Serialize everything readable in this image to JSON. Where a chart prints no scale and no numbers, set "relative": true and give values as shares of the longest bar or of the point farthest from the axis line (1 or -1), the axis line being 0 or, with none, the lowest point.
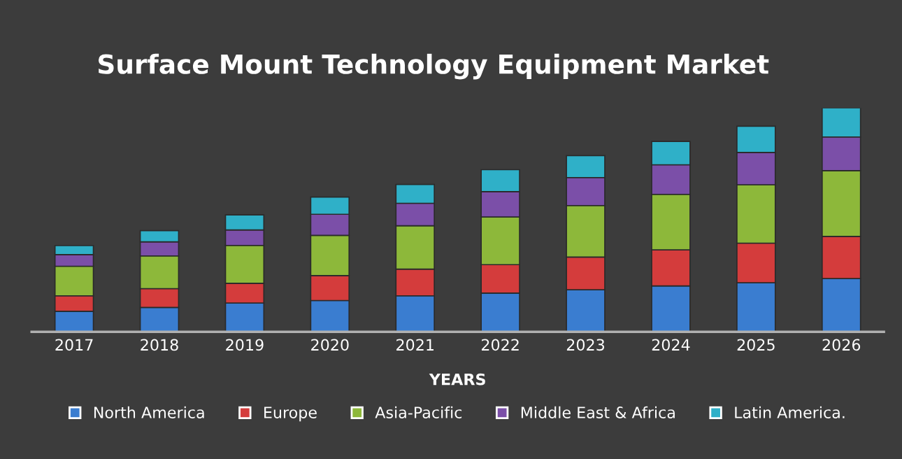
{
  "chart_data": {
    "type": "bar",
    "title": "Surface Mount Technology Equipment Market",
    "xlabel": "YEARS",
    "relative": true,
    "stacked": true,
    "legend": "bottom",
    "grid": false,
    "categories": [
      "2017",
      "2018",
      "2019",
      "2020",
      "2021",
      "2022",
      "2023",
      "2024",
      "2025",
      "2026"
    ],
    "series": [
      {
        "name": "North America",
        "color": "#3a7dd0",
        "values": [
          0.092,
          0.109,
          0.129,
          0.14,
          0.161,
          0.173,
          0.188,
          0.205,
          0.219,
          0.238
        ]
      },
      {
        "name": "Europe",
        "color": "#d43c3c",
        "values": [
          0.069,
          0.084,
          0.088,
          0.111,
          0.119,
          0.127,
          0.146,
          0.161,
          0.177,
          0.188
        ]
      },
      {
        "name": "Asia-Pacific",
        "color": "#8db83a",
        "values": [
          0.132,
          0.146,
          0.169,
          0.18,
          0.194,
          0.213,
          0.23,
          0.248,
          0.261,
          0.294
        ]
      },
      {
        "name": "Middle East & Africa",
        "color": "#7b4fa8",
        "values": [
          0.052,
          0.063,
          0.069,
          0.094,
          0.1,
          0.113,
          0.125,
          0.132,
          0.144,
          0.15
        ]
      },
      {
        "name": "Latin America.",
        "color": "#2fb0c8",
        "values": [
          0.04,
          0.05,
          0.067,
          0.077,
          0.084,
          0.098,
          0.098,
          0.104,
          0.117,
          0.13
        ]
      }
    ]
  }
}
